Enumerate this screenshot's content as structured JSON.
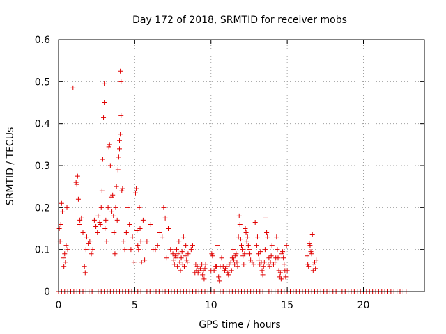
{
  "chart_data": {
    "type": "scatter",
    "title": "Day 172 of 2018, SRMTID for receiver mobs",
    "xlabel": "GPS time / hours",
    "ylabel": "SRMTID / TECUs",
    "xlim": [
      0,
      24
    ],
    "ylim": [
      0,
      0.6
    ],
    "xticks": [
      0,
      5,
      10,
      15,
      20
    ],
    "xtick_labels": [
      "0",
      "5",
      "10",
      "15",
      "20"
    ],
    "yticks": [
      0,
      0.1,
      0.2,
      0.3,
      0.4,
      0.5,
      0.6
    ],
    "ytick_labels": [
      "0",
      "0.1",
      "0.2",
      "0.3",
      "0.4",
      "0.5",
      "0.6"
    ],
    "grid": true,
    "marker": "+",
    "color": "#e00000",
    "series": [
      {
        "name": "SRMTID",
        "points": [
          [
            0.05,
            0.15
          ],
          [
            0.1,
            0.12
          ],
          [
            0.15,
            0.16
          ],
          [
            0.2,
            0.21
          ],
          [
            0.25,
            0.19
          ],
          [
            0.3,
            0.08
          ],
          [
            0.35,
            0.06
          ],
          [
            0.4,
            0.09
          ],
          [
            0.45,
            0.07
          ],
          [
            0.5,
            0.11
          ],
          [
            0.55,
            0.2
          ],
          [
            0.6,
            0.1
          ],
          [
            0.95,
            0.485
          ],
          [
            1.15,
            0.26
          ],
          [
            1.2,
            0.255
          ],
          [
            1.25,
            0.275
          ],
          [
            1.3,
            0.22
          ],
          [
            1.35,
            0.16
          ],
          [
            1.4,
            0.17
          ],
          [
            1.5,
            0.175
          ],
          [
            1.6,
            0.14
          ],
          [
            1.7,
            0.06
          ],
          [
            1.75,
            0.045
          ],
          [
            1.8,
            0.1
          ],
          [
            1.85,
            0.13
          ],
          [
            1.95,
            0.115
          ],
          [
            2.05,
            0.12
          ],
          [
            2.15,
            0.09
          ],
          [
            2.25,
            0.1
          ],
          [
            2.35,
            0.17
          ],
          [
            2.45,
            0.155
          ],
          [
            2.55,
            0.14
          ],
          [
            2.6,
            0.18
          ],
          [
            2.7,
            0.165
          ],
          [
            2.75,
            0.16
          ],
          [
            2.8,
            0.2
          ],
          [
            2.85,
            0.24
          ],
          [
            2.9,
            0.315
          ],
          [
            2.95,
            0.415
          ],
          [
            3.0,
            0.45
          ],
          [
            3.0,
            0.495
          ],
          [
            3.05,
            0.15
          ],
          [
            3.1,
            0.17
          ],
          [
            3.15,
            0.12
          ],
          [
            3.25,
            0.2
          ],
          [
            3.3,
            0.345
          ],
          [
            3.35,
            0.35
          ],
          [
            3.4,
            0.3
          ],
          [
            3.45,
            0.225
          ],
          [
            3.5,
            0.19
          ],
          [
            3.55,
            0.23
          ],
          [
            3.6,
            0.18
          ],
          [
            3.65,
            0.14
          ],
          [
            3.7,
            0.09
          ],
          [
            3.75,
            0.2
          ],
          [
            3.8,
            0.25
          ],
          [
            3.85,
            0.17
          ],
          [
            3.9,
            0.29
          ],
          [
            3.95,
            0.32
          ],
          [
            4.0,
            0.34
          ],
          [
            4.0,
            0.36
          ],
          [
            4.05,
            0.375
          ],
          [
            4.05,
            0.525
          ],
          [
            4.1,
            0.5
          ],
          [
            4.1,
            0.42
          ],
          [
            4.15,
            0.24
          ],
          [
            4.2,
            0.245
          ],
          [
            4.25,
            0.12
          ],
          [
            4.35,
            0.1
          ],
          [
            4.45,
            0.14
          ],
          [
            4.55,
            0.2
          ],
          [
            4.65,
            0.16
          ],
          [
            4.75,
            0.1
          ],
          [
            4.85,
            0.13
          ],
          [
            4.95,
            0.07
          ],
          [
            5.05,
            0.235
          ],
          [
            5.1,
            0.245
          ],
          [
            5.15,
            0.145
          ],
          [
            5.2,
            0.11
          ],
          [
            5.25,
            0.1
          ],
          [
            5.3,
            0.2
          ],
          [
            5.35,
            0.15
          ],
          [
            5.4,
            0.12
          ],
          [
            5.45,
            0.07
          ],
          [
            5.55,
            0.17
          ],
          [
            5.65,
            0.075
          ],
          [
            5.8,
            0.12
          ],
          [
            6.05,
            0.16
          ],
          [
            6.2,
            0.1
          ],
          [
            6.35,
            0.1
          ],
          [
            6.5,
            0.11
          ],
          [
            6.65,
            0.14
          ],
          [
            6.8,
            0.13
          ],
          [
            6.9,
            0.2
          ],
          [
            7.0,
            0.175
          ],
          [
            7.1,
            0.08
          ],
          [
            7.2,
            0.15
          ],
          [
            7.35,
            0.1
          ],
          [
            7.5,
            0.09
          ],
          [
            7.55,
            0.075
          ],
          [
            7.6,
            0.065
          ],
          [
            7.65,
            0.085
          ],
          [
            7.7,
            0.08
          ],
          [
            7.75,
            0.1
          ],
          [
            7.8,
            0.06
          ],
          [
            7.85,
            0.09
          ],
          [
            7.9,
            0.12
          ],
          [
            7.95,
            0.07
          ],
          [
            8.0,
            0.05
          ],
          [
            8.05,
            0.08
          ],
          [
            8.1,
            0.095
          ],
          [
            8.15,
            0.065
          ],
          [
            8.2,
            0.13
          ],
          [
            8.25,
            0.06
          ],
          [
            8.3,
            0.085
          ],
          [
            8.35,
            0.11
          ],
          [
            8.4,
            0.075
          ],
          [
            8.45,
            0.07
          ],
          [
            8.5,
            0.09
          ],
          [
            8.7,
            0.1
          ],
          [
            8.8,
            0.11
          ],
          [
            8.95,
            0.045
          ],
          [
            9.0,
            0.065
          ],
          [
            9.05,
            0.05
          ],
          [
            9.1,
            0.06
          ],
          [
            9.15,
            0.045
          ],
          [
            9.2,
            0.05
          ],
          [
            9.3,
            0.055
          ],
          [
            9.4,
            0.065
          ],
          [
            9.45,
            0.04
          ],
          [
            9.5,
            0.05
          ],
          [
            9.55,
            0.03
          ],
          [
            9.6,
            0.055
          ],
          [
            9.65,
            0.065
          ],
          [
            10.0,
            0.05
          ],
          [
            10.05,
            0.09
          ],
          [
            10.1,
            0.085
          ],
          [
            10.2,
            0.05
          ],
          [
            10.3,
            0.06
          ],
          [
            10.35,
            0.06
          ],
          [
            10.4,
            0.11
          ],
          [
            10.5,
            0.035
          ],
          [
            10.55,
            0.025
          ],
          [
            10.6,
            0.06
          ],
          [
            10.7,
            0.08
          ],
          [
            10.8,
            0.06
          ],
          [
            10.9,
            0.05
          ],
          [
            10.95,
            0.055
          ],
          [
            11.0,
            0.06
          ],
          [
            11.1,
            0.045
          ],
          [
            11.15,
            0.04
          ],
          [
            11.2,
            0.065
          ],
          [
            11.3,
            0.07
          ],
          [
            11.35,
            0.05
          ],
          [
            11.4,
            0.08
          ],
          [
            11.45,
            0.1
          ],
          [
            11.5,
            0.075
          ],
          [
            11.55,
            0.065
          ],
          [
            11.6,
            0.085
          ],
          [
            11.65,
            0.09
          ],
          [
            11.7,
            0.07
          ],
          [
            11.75,
            0.06
          ],
          [
            11.8,
            0.13
          ],
          [
            11.85,
            0.18
          ],
          [
            11.9,
            0.16
          ],
          [
            11.95,
            0.125
          ],
          [
            12.0,
            0.11
          ],
          [
            12.05,
            0.1
          ],
          [
            12.1,
            0.085
          ],
          [
            12.15,
            0.065
          ],
          [
            12.2,
            0.09
          ],
          [
            12.25,
            0.15
          ],
          [
            12.3,
            0.14
          ],
          [
            12.35,
            0.12
          ],
          [
            12.4,
            0.13
          ],
          [
            12.45,
            0.11
          ],
          [
            12.5,
            0.1
          ],
          [
            12.55,
            0.09
          ],
          [
            12.6,
            0.075
          ],
          [
            12.7,
            0.07
          ],
          [
            12.8,
            0.065
          ],
          [
            12.9,
            0.165
          ],
          [
            13.0,
            0.11
          ],
          [
            13.05,
            0.13
          ],
          [
            13.1,
            0.09
          ],
          [
            13.15,
            0.075
          ],
          [
            13.2,
            0.065
          ],
          [
            13.25,
            0.095
          ],
          [
            13.3,
            0.07
          ],
          [
            13.35,
            0.05
          ],
          [
            13.4,
            0.04
          ],
          [
            13.45,
            0.06
          ],
          [
            13.5,
            0.07
          ],
          [
            13.55,
            0.1
          ],
          [
            13.6,
            0.175
          ],
          [
            13.65,
            0.14
          ],
          [
            13.7,
            0.13
          ],
          [
            13.75,
            0.065
          ],
          [
            13.8,
            0.08
          ],
          [
            13.85,
            0.06
          ],
          [
            13.9,
            0.07
          ],
          [
            13.95,
            0.085
          ],
          [
            14.0,
            0.11
          ],
          [
            14.1,
            0.065
          ],
          [
            14.2,
            0.07
          ],
          [
            14.25,
            0.08
          ],
          [
            14.3,
            0.13
          ],
          [
            14.35,
            0.1
          ],
          [
            14.4,
            0.08
          ],
          [
            14.45,
            0.05
          ],
          [
            14.5,
            0.035
          ],
          [
            14.55,
            0.045
          ],
          [
            14.6,
            0.03
          ],
          [
            14.65,
            0.09
          ],
          [
            14.7,
            0.095
          ],
          [
            14.75,
            0.08
          ],
          [
            14.8,
            0.065
          ],
          [
            14.85,
            0.05
          ],
          [
            14.9,
            0.035
          ],
          [
            14.95,
            0.11
          ],
          [
            15.0,
            0.05
          ],
          [
            16.3,
            0.085
          ],
          [
            16.35,
            0.065
          ],
          [
            16.4,
            0.06
          ],
          [
            16.45,
            0.115
          ],
          [
            16.5,
            0.11
          ],
          [
            16.55,
            0.095
          ],
          [
            16.6,
            0.09
          ],
          [
            16.65,
            0.135
          ],
          [
            16.7,
            0.05
          ],
          [
            16.75,
            0.065
          ],
          [
            16.8,
            0.07
          ],
          [
            16.85,
            0.055
          ],
          [
            16.9,
            0.075
          ]
        ],
        "baseline": {
          "y": 0,
          "x_start": 0,
          "x_end": 22.8,
          "x_step": 0.2
        }
      }
    ]
  }
}
